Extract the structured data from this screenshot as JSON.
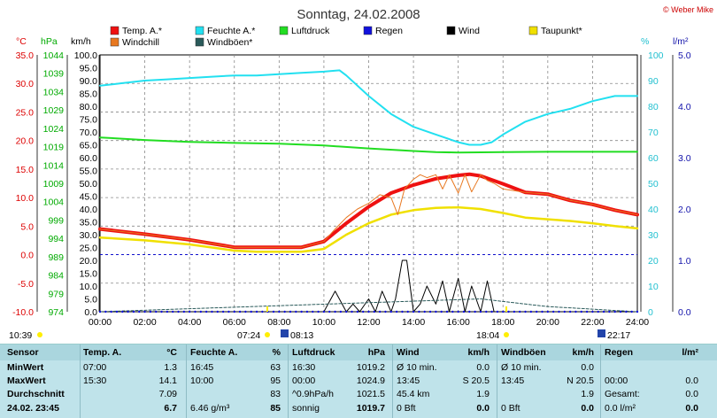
{
  "title": "Sonntag, 24.02.2008",
  "credit": "© Weber Mike",
  "legend": [
    {
      "label": "Temp. A.*",
      "color": "#ee1111"
    },
    {
      "label": "Feuchte A.*",
      "color": "#22e0f0"
    },
    {
      "label": "Luftdruck",
      "color": "#22dd22"
    },
    {
      "label": "Regen",
      "color": "#1111dd"
    },
    {
      "label": "Wind",
      "color": "#000000"
    },
    {
      "label": "Taupunkt*",
      "color": "#f0e000"
    },
    {
      "label": "Windchill",
      "color": "#e87820"
    },
    {
      "label": "Windböen*",
      "color": "#2a5a5a"
    }
  ],
  "axis_units": {
    "temp": "°C",
    "pressure": "hPa",
    "wind": "km/h",
    "humidity": "%",
    "rain": "l/m²"
  },
  "markers": {
    "left_time": "10:39",
    "sunrise": "07:24",
    "sunrise2": "08:13",
    "sunset": "18:04",
    "sunset2": "22:17"
  },
  "chart_data": {
    "type": "line",
    "x_ticks": [
      "00:00",
      "02:00",
      "04:00",
      "06:00",
      "08:00",
      "10:00",
      "12:00",
      "14:00",
      "16:00",
      "18:00",
      "20:00",
      "22:00",
      "24:00"
    ],
    "axes": {
      "temp_C": {
        "ticks": [
          "35.0",
          "30.0",
          "25.0",
          "20.0",
          "15.0",
          "10.0",
          "5.0",
          "0.0",
          "-5.0",
          "-10.0"
        ],
        "range": [
          -10,
          35
        ]
      },
      "pressure_hPa": {
        "ticks": [
          "1044",
          "1039",
          "1034",
          "1029",
          "1024",
          "1019",
          "1014",
          "1009",
          "1004",
          "999",
          "994",
          "989",
          "984",
          "979",
          "974"
        ],
        "range": [
          974,
          1044
        ]
      },
      "wind_kmh": {
        "ticks": [
          "100.0",
          "95.0",
          "90.0",
          "85.0",
          "80.0",
          "75.0",
          "70.0",
          "65.0",
          "60.0",
          "55.0",
          "50.0",
          "45.0",
          "40.0",
          "35.0",
          "30.0",
          "25.0",
          "20.0",
          "15.0",
          "10.0",
          "5.0",
          "0.0"
        ],
        "range": [
          0,
          100
        ]
      },
      "humidity_pct": {
        "ticks": [
          "100",
          "90",
          "80",
          "70",
          "60",
          "50",
          "40",
          "30",
          "20",
          "10",
          "0"
        ],
        "range": [
          0,
          100
        ]
      },
      "rain_lm2": {
        "ticks": [
          "5.0",
          "4.0",
          "3.0",
          "2.0",
          "1.0",
          "0.0"
        ],
        "range": [
          0,
          5
        ]
      }
    },
    "series": [
      {
        "name": "Temp. A.*",
        "axis": "temp_C",
        "color": "#ee1111",
        "width": 4,
        "x": [
          0,
          2,
          4,
          6,
          7,
          8,
          9,
          10,
          11,
          12,
          13,
          14,
          15,
          16,
          16.5,
          17,
          18,
          19,
          20,
          21,
          22,
          23,
          24
        ],
        "y": [
          4.5,
          3.6,
          2.6,
          1.3,
          1.3,
          1.3,
          1.3,
          2.3,
          5.5,
          8.4,
          10.8,
          12.2,
          13.3,
          13.9,
          14.1,
          13.8,
          12.4,
          10.9,
          10.6,
          9.5,
          8.8,
          7.8,
          7.0
        ]
      },
      {
        "name": "Taupunkt*",
        "axis": "temp_C",
        "color": "#f0e000",
        "width": 2.5,
        "x": [
          0,
          2,
          4,
          6,
          7,
          8,
          9,
          10,
          11,
          12,
          13,
          14,
          15,
          16,
          17,
          18,
          19,
          20,
          21,
          22,
          23,
          24
        ],
        "y": [
          3.0,
          2.5,
          1.8,
          0.7,
          0.5,
          0.5,
          0.5,
          1.0,
          3.5,
          5.5,
          7.0,
          7.8,
          8.2,
          8.3,
          8.0,
          7.3,
          6.5,
          6.2,
          5.9,
          5.5,
          5.0,
          4.6
        ]
      },
      {
        "name": "Windchill",
        "axis": "temp_C",
        "color": "#e87820",
        "width": 1,
        "x": [
          0,
          2,
          4,
          6,
          7,
          8,
          9,
          10,
          10.5,
          11,
          11.5,
          12,
          12.5,
          13,
          13.3,
          13.6,
          14,
          14.3,
          14.6,
          15,
          15.3,
          15.6,
          16,
          16.3,
          16.6,
          17,
          17.3,
          17.6,
          18,
          19,
          20,
          21,
          22,
          23,
          24
        ],
        "y": [
          4.5,
          3.6,
          2.6,
          1.3,
          1.3,
          1.3,
          1.3,
          2.3,
          4.5,
          6.5,
          8.0,
          9.0,
          10.5,
          10.0,
          7.0,
          11.5,
          13.2,
          14.0,
          13.5,
          14.0,
          11.5,
          14.0,
          10.8,
          14.0,
          11.0,
          14.0,
          13.0,
          12.5,
          11.5,
          10.9,
          10.6,
          9.5,
          8.8,
          7.8,
          7.0
        ]
      },
      {
        "name": "Feuchte A.*",
        "axis": "humidity_pct",
        "color": "#22e0f0",
        "width": 2,
        "x": [
          0,
          1,
          2,
          3,
          4,
          5,
          6,
          7,
          8,
          9,
          10,
          10.7,
          11,
          12,
          13,
          14,
          15,
          16,
          16.5,
          17,
          17.5,
          18,
          19,
          20,
          21,
          22,
          23,
          23.5,
          24
        ],
        "y": [
          88,
          89,
          90,
          90.5,
          91,
          91.5,
          92,
          92,
          92.5,
          93,
          93.5,
          94,
          92,
          84,
          77,
          72,
          69,
          66,
          65,
          65,
          66,
          69,
          74,
          77,
          79,
          82,
          84,
          84,
          84
        ]
      },
      {
        "name": "Luftdruck",
        "axis": "pressure_hPa",
        "color": "#22dd22",
        "width": 2,
        "x": [
          0,
          2,
          4,
          6,
          8,
          10,
          12,
          14,
          15,
          16,
          18,
          20,
          22,
          24
        ],
        "y": [
          1021.5,
          1020.8,
          1020.3,
          1020.0,
          1019.8,
          1019.3,
          1018.5,
          1017.8,
          1017.5,
          1017.4,
          1017.5,
          1017.6,
          1017.6,
          1017.6
        ]
      },
      {
        "name": "Wind",
        "axis": "wind_kmh",
        "color": "#000000",
        "width": 1,
        "x": [
          0,
          10,
          10.5,
          11,
          11.3,
          11.6,
          12,
          12.3,
          12.6,
          13,
          13.2,
          13.5,
          13.7,
          14,
          14.3,
          14.6,
          15,
          15.3,
          15.6,
          16,
          16.3,
          16.6,
          17,
          17.3,
          17.6,
          18,
          18.3,
          24
        ],
        "y": [
          0,
          0,
          8,
          0,
          3,
          0,
          5,
          0,
          8,
          0,
          5,
          20,
          20,
          0,
          3,
          10,
          3,
          12,
          0,
          13,
          0,
          10,
          0,
          12,
          0,
          0,
          0,
          0
        ]
      },
      {
        "name": "Windböen*",
        "axis": "wind_kmh",
        "color": "#2a5a5a",
        "width": 1,
        "dash": "3,2",
        "x": [
          0,
          17,
          18,
          19,
          20,
          21,
          22,
          23,
          24
        ],
        "y": [
          0,
          5,
          4,
          3,
          2,
          1.5,
          1,
          0.5,
          0
        ]
      }
    ]
  },
  "stats": {
    "headers": [
      "Sensor",
      "Temp. A.",
      "°C",
      "Feuchte A.",
      "%",
      "Luftdruck",
      "hPa",
      "Wind",
      "km/h",
      "Windböen",
      "km/h",
      "Regen",
      "l/m²"
    ],
    "rows": [
      {
        "label": "MinWert",
        "cells": [
          "07:00",
          "1.3",
          "16:45",
          "63",
          "16:30",
          "1019.2",
          "Ø 10 min.",
          "0.0",
          "Ø 10 min.",
          "0.0",
          "",
          ""
        ]
      },
      {
        "label": "MaxWert",
        "cells": [
          "15:30",
          "14.1",
          "10:00",
          "95",
          "00:00",
          "1024.9",
          "13:45",
          "S 20.5",
          "13:45",
          "N 20.5",
          "00:00",
          "0.0"
        ]
      },
      {
        "label": "Durchschnitt",
        "cells": [
          "",
          "7.09",
          "",
          "83",
          "^0.9hPa/h",
          "1021.5",
          "45.4 km",
          "1.9",
          "",
          "1.9",
          "Gesamt:",
          "0.0"
        ]
      },
      {
        "label": "24.02. 23:45",
        "cells": [
          "",
          "6.7",
          "6.46 g/m³",
          "85",
          "sonnig",
          "1019.7",
          "0 Bft",
          "0.0",
          "0 Bft",
          "0.0",
          "0.0 l/m²",
          "0.0"
        ]
      }
    ]
  }
}
